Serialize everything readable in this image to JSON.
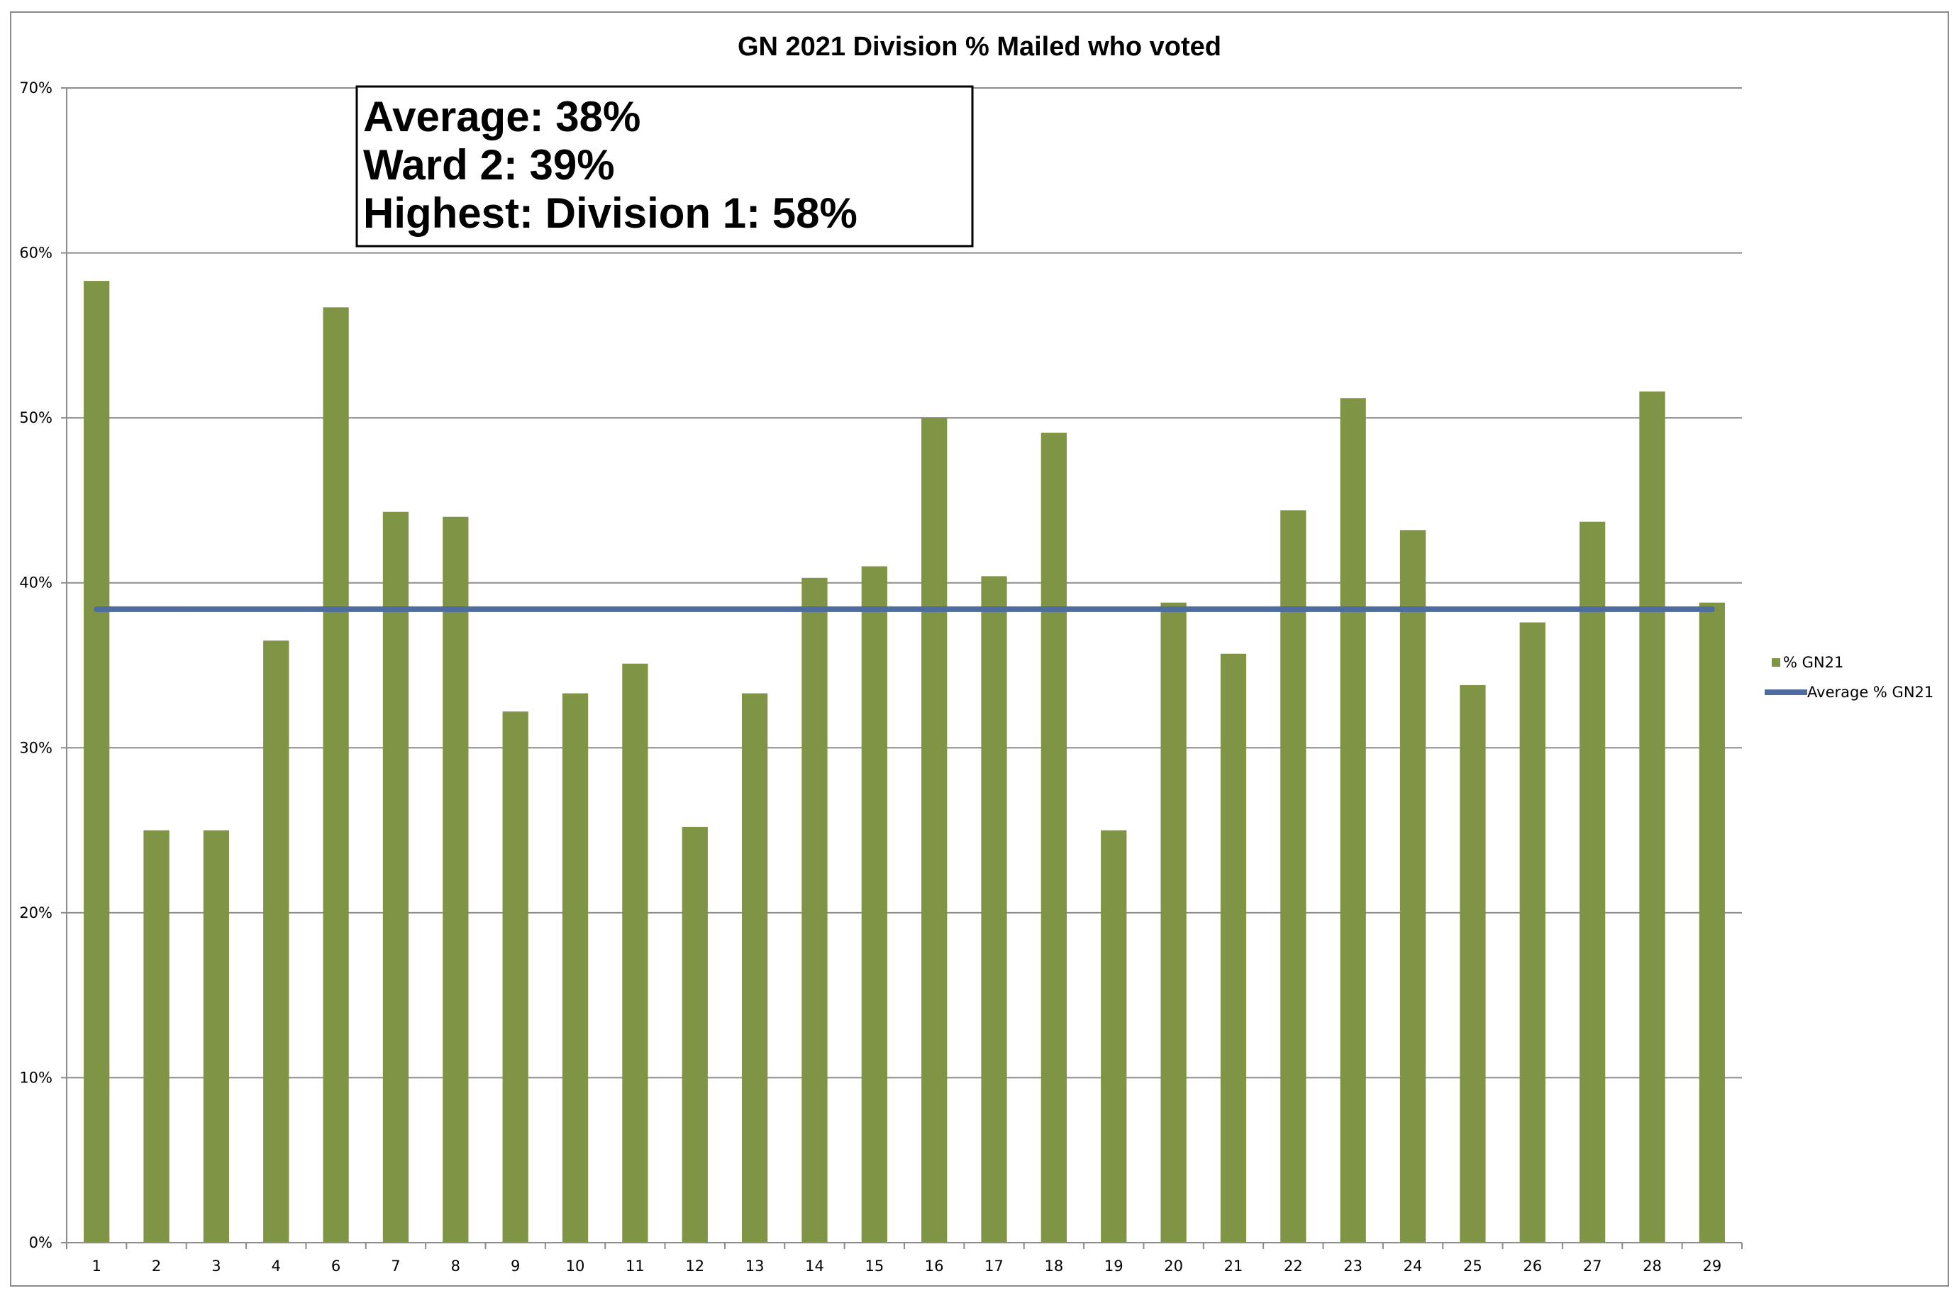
{
  "chart_data": {
    "type": "bar",
    "title": "GN 2021 Division % Mailed who voted",
    "categories": [
      "1",
      "2",
      "3",
      "4",
      "6",
      "7",
      "8",
      "9",
      "10",
      "11",
      "12",
      "13",
      "14",
      "15",
      "16",
      "17",
      "18",
      "19",
      "20",
      "21",
      "22",
      "23",
      "24",
      "25",
      "26",
      "27",
      "28",
      "29"
    ],
    "series": [
      {
        "name": "% GN21",
        "kind": "bar",
        "color": "#7f9444",
        "values": [
          58.3,
          25.0,
          25.0,
          36.5,
          56.7,
          44.3,
          44.0,
          32.2,
          33.3,
          35.1,
          25.2,
          33.3,
          40.3,
          41.0,
          50.0,
          40.4,
          49.1,
          25.0,
          38.8,
          35.7,
          44.4,
          51.2,
          43.2,
          33.8,
          37.6,
          43.7,
          51.6,
          38.8
        ]
      },
      {
        "name": "Average % GN21",
        "kind": "line",
        "color": "#4f6c9e",
        "value": 38.4
      }
    ],
    "y_ticks": [
      "0%",
      "10%",
      "20%",
      "30%",
      "40%",
      "50%",
      "60%",
      "70%"
    ],
    "ylim": [
      0,
      70
    ],
    "xlabel": "",
    "ylabel": "",
    "grid": true,
    "legend_position": "right",
    "annotation": {
      "lines": [
        "Average:  38%",
        "Ward 2:  39%",
        "Highest:  Division 1:  58%"
      ]
    }
  }
}
